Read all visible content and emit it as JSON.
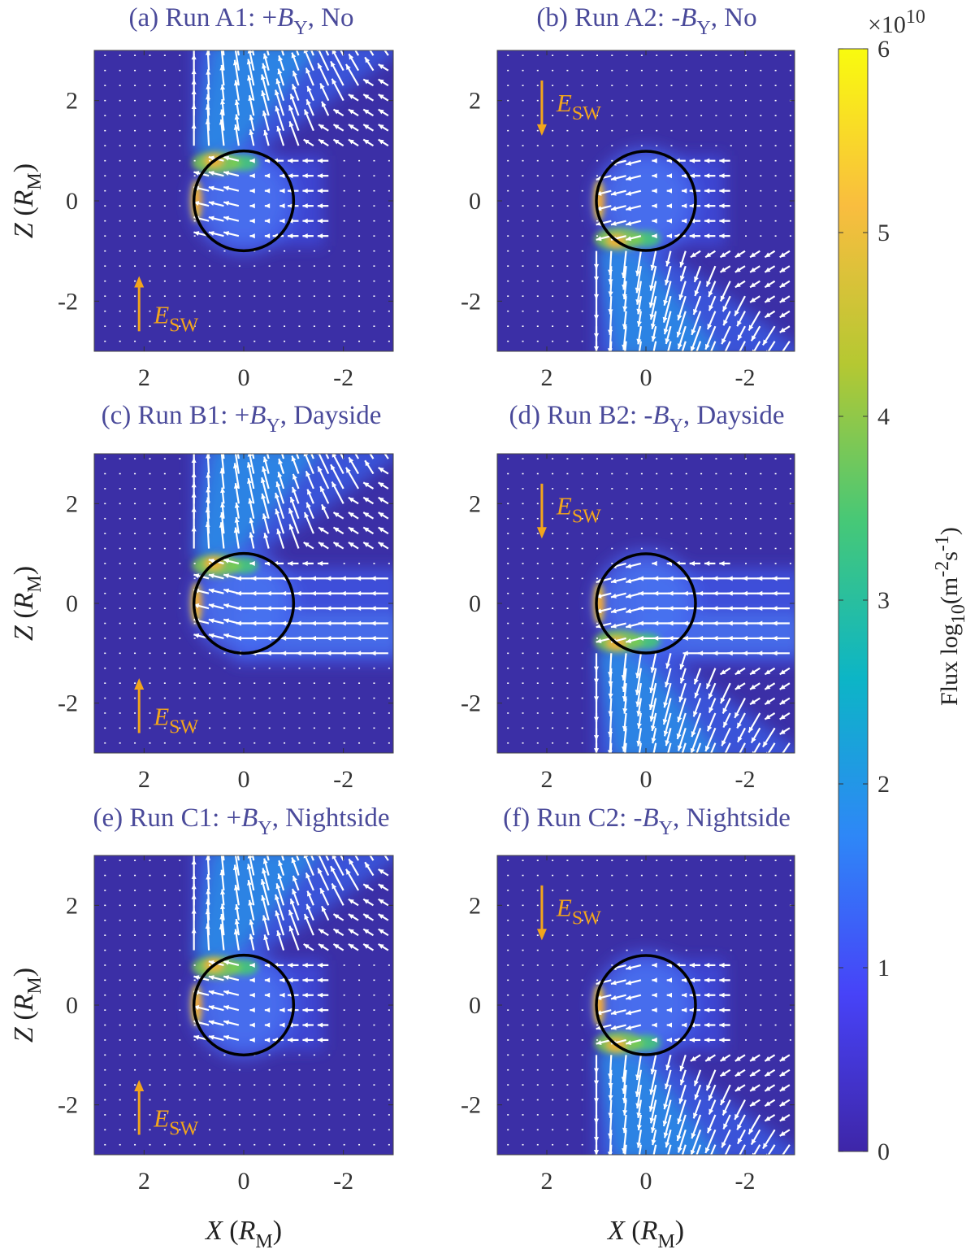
{
  "colors": {
    "background_flux": "#3b2fa6",
    "arrow": "#ffffff",
    "planet": "#000000",
    "esw_arrow": "#f2a51c",
    "title": "#4a4a9a"
  },
  "chart_data": {
    "type": "heatmap",
    "axis": {
      "x_label_var": "X",
      "x_label_unit": "R",
      "x_label_unit_sub": "M",
      "y_label_var": "Z",
      "y_label_unit": "R",
      "y_label_unit_sub": "M",
      "xlim": [
        3,
        -3
      ],
      "ylim": [
        -3,
        3
      ],
      "x_ticks": [
        {
          "v": 2,
          "label": "2"
        },
        {
          "v": 0,
          "label": "0"
        },
        {
          "v": -2,
          "label": "-2"
        }
      ],
      "y_ticks": [
        {
          "v": 2,
          "label": "2"
        },
        {
          "v": 0,
          "label": "0"
        },
        {
          "v": -2,
          "label": "-2"
        }
      ]
    },
    "colorbar": {
      "min": 0,
      "max": 6,
      "ticks": [
        "0",
        "1",
        "2",
        "3",
        "4",
        "5",
        "6"
      ],
      "exponent_prefix": "×10",
      "exponent_power": "10",
      "label": "Flux  log",
      "label_sub": "10",
      "label_unit": "(m",
      "label_unit_sup1": "-2",
      "label_unit_mid": "s",
      "label_unit_sup2": "-1",
      "label_unit_end": ")",
      "colormap": [
        "#3e26a8",
        "#4743f8",
        "#2e87f7",
        "#0cb5c6",
        "#46c877",
        "#b5c832",
        "#f9bd3f",
        "#f9fb0e"
      ]
    },
    "planet_radius": 1,
    "e_sw_label": "E",
    "e_sw_sub": "SW",
    "panels": [
      {
        "id": "a",
        "title_pre": "(a) Run A1: +",
        "title_var": "B",
        "title_sub": "Y",
        "title_post": ", No",
        "by_sign": 1,
        "boundary": "none",
        "esw_dir": "up",
        "esw_x": 2.1,
        "esw_y_range": [
          -2.6,
          -1.5
        ]
      },
      {
        "id": "b",
        "title_pre": "(b) Run A2: -",
        "title_var": "B",
        "title_sub": "Y",
        "title_post": ", No",
        "by_sign": -1,
        "boundary": "none",
        "esw_dir": "down",
        "esw_x": 2.1,
        "esw_y_range": [
          1.3,
          2.4
        ]
      },
      {
        "id": "c",
        "title_pre": "(c) Run B1: +",
        "title_var": "B",
        "title_sub": "Y",
        "title_post": ", Dayside",
        "by_sign": 1,
        "boundary": "dayside",
        "esw_dir": "up",
        "esw_x": 2.1,
        "esw_y_range": [
          -2.6,
          -1.5
        ]
      },
      {
        "id": "d",
        "title_pre": "(d) Run B2: -",
        "title_var": "B",
        "title_sub": "Y",
        "title_post": ", Dayside",
        "by_sign": -1,
        "boundary": "dayside",
        "esw_dir": "down",
        "esw_x": 2.1,
        "esw_y_range": [
          1.3,
          2.4
        ]
      },
      {
        "id": "e",
        "title_pre": "(e) Run C1: +",
        "title_var": "B",
        "title_sub": "Y",
        "title_post": ", Nightside",
        "by_sign": 1,
        "boundary": "nightside",
        "esw_dir": "up",
        "esw_x": 2.1,
        "esw_y_range": [
          -2.6,
          -1.5
        ]
      },
      {
        "id": "f",
        "title_pre": "(f) Run C2: -",
        "title_var": "B",
        "title_sub": "Y",
        "title_post": ", Nightside",
        "by_sign": -1,
        "boundary": "nightside",
        "esw_dir": "down",
        "esw_x": 2.1,
        "esw_y_range": [
          1.3,
          2.4
        ]
      }
    ]
  }
}
